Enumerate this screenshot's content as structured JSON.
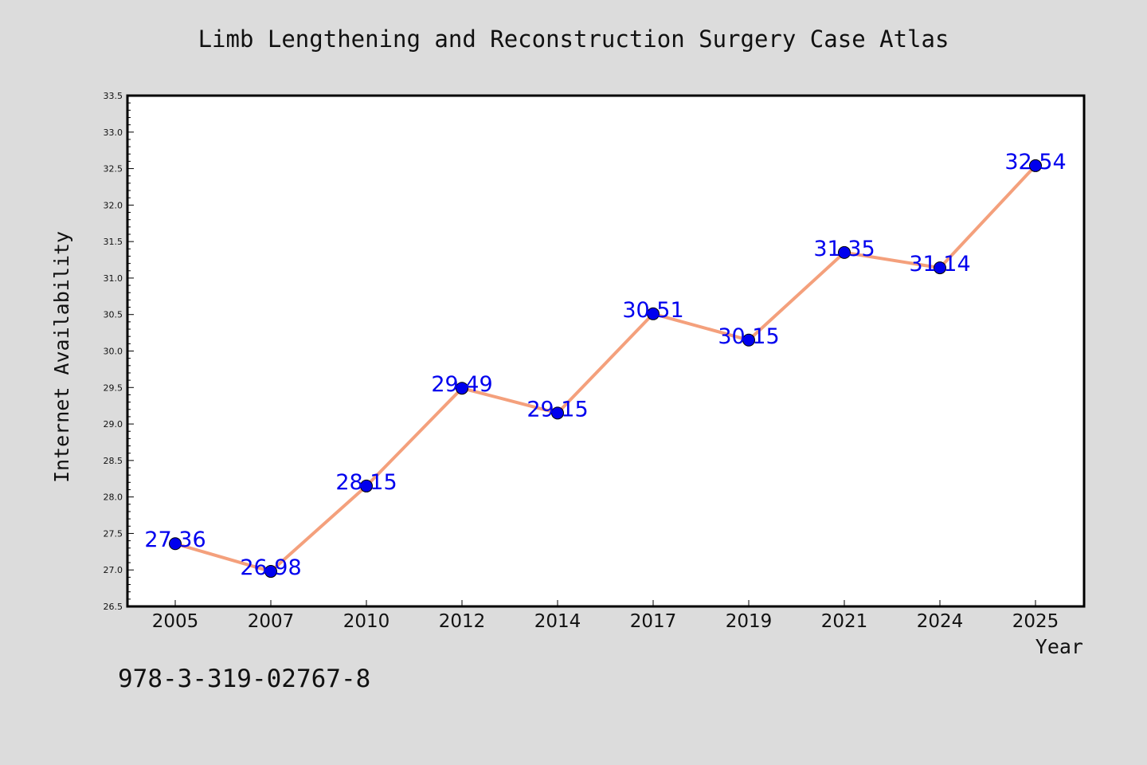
{
  "figure": {
    "title": "Limb Lengthening and Reconstruction Surgery Case Atlas",
    "footer_text": "978-3-319-02767-8",
    "background_color": "#dcdcdc"
  },
  "chart_data": {
    "type": "line",
    "title": "Limb Lengthening and Reconstruction Surgery Case Atlas",
    "xlabel": "Year",
    "ylabel": "Internet Availability",
    "categories": [
      "2005",
      "2007",
      "2010",
      "2012",
      "2014",
      "2017",
      "2019",
      "2021",
      "2024",
      "2025"
    ],
    "series": [
      {
        "values": [
          27.36,
          26.98,
          28.15,
          29.49,
          29.15,
          30.51,
          30.15,
          31.35,
          31.14,
          32.54
        ],
        "line_color": "#f4a07c",
        "marker_color": "#0000ee",
        "label_color": "#0000ee",
        "data_labels": [
          "27.36",
          "26.98",
          "28.15",
          "29.49",
          "29.15",
          "30.51",
          "30.15",
          "31.35",
          "31.14",
          "32.54"
        ]
      }
    ],
    "ylim": [
      26.5,
      33.5
    ],
    "y_major_ticks": [
      "26.5",
      "27.0",
      "27.5",
      "28.0",
      "28.5",
      "29.0",
      "29.5",
      "30.0",
      "30.5",
      "31.0",
      "31.5",
      "32.0",
      "32.5",
      "33.0",
      "33.5"
    ],
    "y_minor_tick_step": 0.1,
    "grid": false,
    "legend": "none"
  }
}
